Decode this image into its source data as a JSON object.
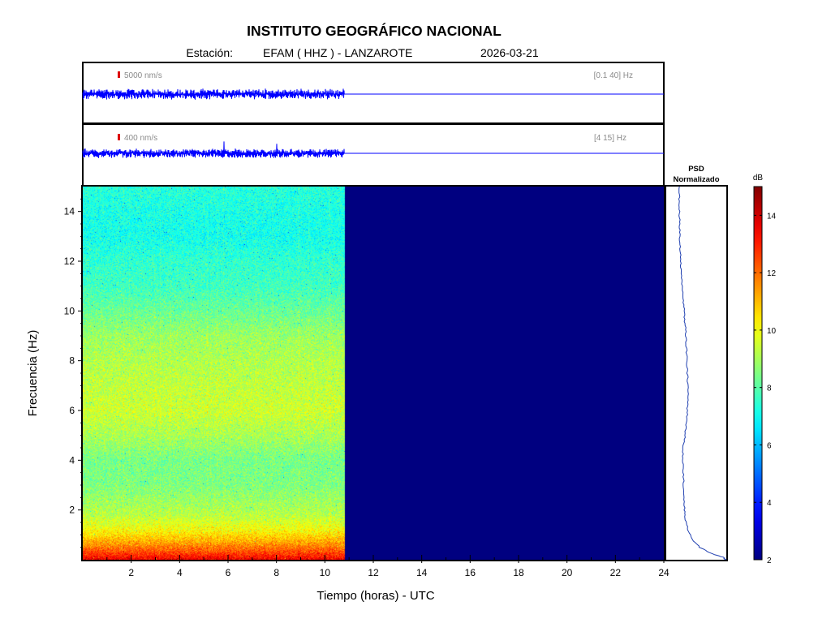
{
  "header": {
    "title": "INSTITUTO GEOGRÁFICO NACIONAL",
    "station_label": "Estación:",
    "station": "EFAM ( HHZ ) - LANZAROTE",
    "date": "2026-03-21"
  },
  "chart_data": [
    {
      "type": "line",
      "panel": "seismogram-broadband",
      "scale_label": "5000 nm/s",
      "filter_label": "[0.1 40] Hz",
      "data_end_hour": 10.8,
      "x_range": [
        0,
        24
      ],
      "color": "#0000ff",
      "scale_color": "#dd0000"
    },
    {
      "type": "line",
      "panel": "seismogram-filtered",
      "scale_label": "400 nm/s",
      "filter_label": "[4 15] Hz",
      "data_end_hour": 10.8,
      "x_range": [
        0,
        24
      ],
      "color": "#0000ff",
      "scale_color": "#dd0000"
    },
    {
      "type": "heatmap",
      "panel": "spectrogram",
      "xlabel": "Tiempo (horas) - UTC",
      "ylabel": "Frecuencia  (Hz)",
      "xlim": [
        0,
        24
      ],
      "ylim": [
        0,
        15
      ],
      "xticks": [
        2,
        4,
        6,
        8,
        10,
        12,
        14,
        16,
        18,
        20,
        22,
        24
      ],
      "yticks": [
        2,
        4,
        6,
        8,
        10,
        12,
        14
      ],
      "data_end_hour": 10.8,
      "no_data_value_db": 2,
      "mean_db_profile": {
        "freq_hz": [
          0,
          0.3,
          0.7,
          1.2,
          1.8,
          3,
          4,
          5,
          6,
          7,
          8,
          9,
          10,
          11,
          12,
          13,
          14,
          15
        ],
        "db": [
          14,
          12.8,
          11.5,
          10.2,
          9.3,
          8.5,
          8.4,
          9.1,
          9.6,
          9.4,
          9.2,
          8.9,
          8.2,
          7.6,
          7.4,
          7.0,
          7.1,
          7.3
        ]
      }
    },
    {
      "type": "line",
      "panel": "psd",
      "title_line1": "PSD",
      "title_line2": "Normalizado",
      "freq_hz": [
        0,
        0.1,
        0.25,
        0.5,
        0.8,
        1.2,
        1.6,
        2,
        2.5,
        3,
        3.5,
        4,
        4.5,
        5,
        5.5,
        6,
        6.5,
        7,
        7.5,
        8,
        8.5,
        9,
        9.5,
        10,
        10.5,
        11,
        11.5,
        12,
        12.5,
        13,
        13.5,
        14,
        14.5,
        15
      ],
      "psd_norm": [
        1.0,
        0.95,
        0.7,
        0.45,
        0.3,
        0.2,
        0.15,
        0.13,
        0.12,
        0.11,
        0.1,
        0.09,
        0.1,
        0.14,
        0.17,
        0.19,
        0.2,
        0.2,
        0.19,
        0.18,
        0.17,
        0.16,
        0.14,
        0.12,
        0.1,
        0.08,
        0.06,
        0.05,
        0.04,
        0.03,
        0.03,
        0.02,
        0.02,
        0.02
      ],
      "color": "#1f3fb0"
    }
  ],
  "colorbar": {
    "label": "dB",
    "range": [
      2,
      15
    ],
    "ticks": [
      2,
      4,
      6,
      8,
      10,
      12,
      14
    ]
  }
}
